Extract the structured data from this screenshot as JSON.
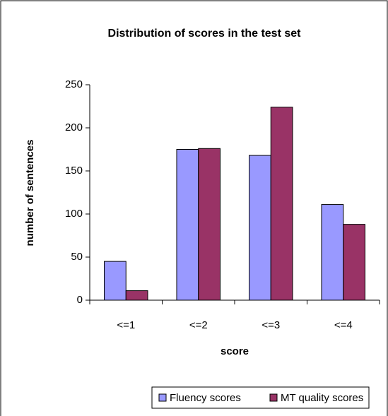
{
  "chart_data": {
    "type": "bar",
    "title": "Distribution of scores in the test set",
    "x_label": "score",
    "y_label": "number of sentences",
    "categories": [
      "<=1",
      "<=2",
      "<=3",
      "<=4"
    ],
    "series": [
      {
        "name": "Fluency scores",
        "color": "#9999ff",
        "values": [
          45,
          175,
          168,
          111
        ]
      },
      {
        "name": "MT quality scores",
        "color": "#993366",
        "values": [
          11,
          176,
          224,
          88
        ]
      }
    ],
    "ylim": [
      0,
      250
    ],
    "yticks": [
      0,
      50,
      100,
      150,
      200,
      250
    ],
    "legend": "bottom"
  }
}
